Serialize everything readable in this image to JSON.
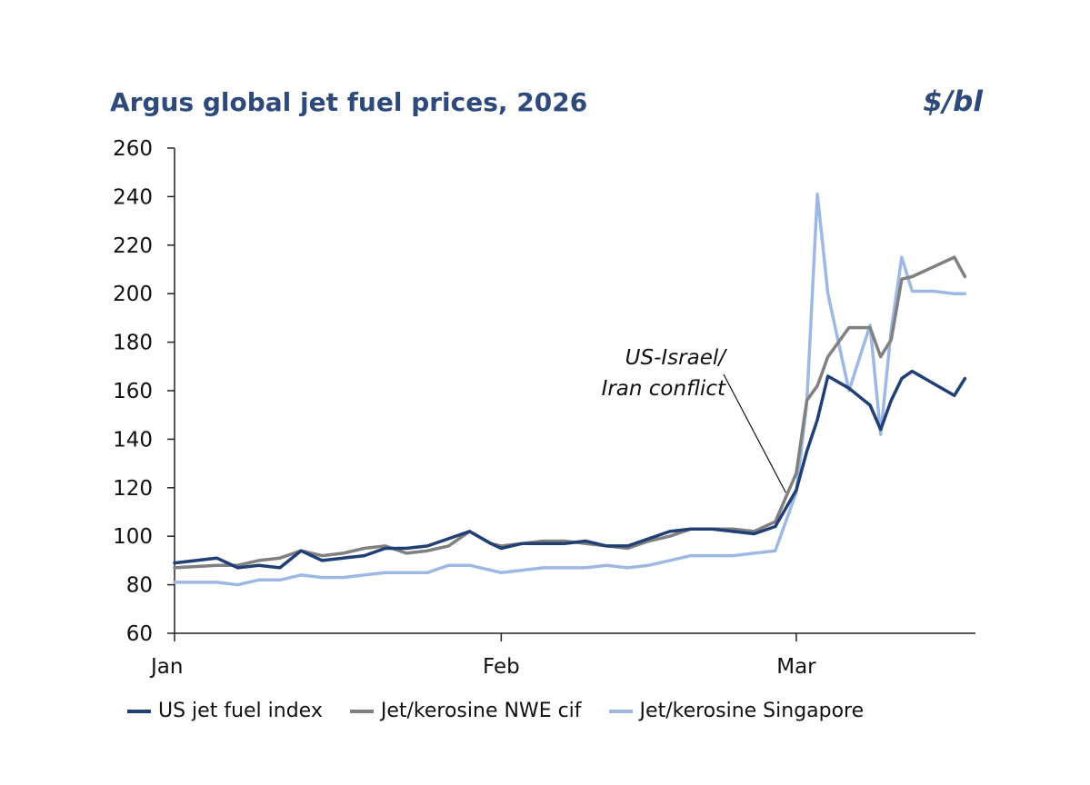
{
  "colors": {
    "title": "#2e4a7a",
    "axis": "#222222",
    "series_us": "#1f3f75",
    "series_nwe": "#808080",
    "series_sing": "#9db9e3"
  },
  "chart_data": {
    "type": "line",
    "title": "Argus global jet fuel prices, 2026",
    "unit_label": "$/bl",
    "xlabel": "",
    "ylabel": "$/bl",
    "ylim": [
      60,
      260
    ],
    "yticks": [
      60,
      80,
      100,
      120,
      140,
      160,
      180,
      200,
      220,
      240,
      260
    ],
    "xlim": [
      0,
      76
    ],
    "xticks": [
      {
        "label": "Jan",
        "x": 0
      },
      {
        "label": "Feb",
        "x": 31
      },
      {
        "label": "Mar",
        "x": 59
      }
    ],
    "annotation": {
      "lines": [
        "US-Israel/",
        "Iran conflict"
      ],
      "points_to_day": 58
    },
    "x": [
      0,
      4,
      6,
      8,
      10,
      12,
      14,
      16,
      18,
      20,
      22,
      24,
      26,
      28,
      30,
      31,
      33,
      35,
      37,
      39,
      41,
      43,
      45,
      47,
      49,
      51,
      53,
      55,
      57,
      59,
      60,
      61,
      62,
      64,
      66,
      67,
      68,
      69,
      70,
      72,
      74,
      75
    ],
    "series": [
      {
        "name": "US jet fuel index",
        "color": "#1f3f75",
        "values": [
          89,
          91,
          87,
          88,
          87,
          94,
          90,
          91,
          92,
          95,
          95,
          96,
          99,
          102,
          97,
          95,
          97,
          97,
          97,
          98,
          96,
          96,
          99,
          102,
          103,
          103,
          102,
          101,
          104,
          119,
          135,
          148,
          166,
          161,
          154,
          144,
          156,
          165,
          168,
          163,
          158,
          165
        ]
      },
      {
        "name": "Jet/kerosine NWE cif",
        "color": "#808080",
        "values": [
          87,
          88,
          88,
          90,
          91,
          94,
          92,
          93,
          95,
          96,
          93,
          94,
          96,
          102,
          97,
          96,
          97,
          98,
          98,
          97,
          96,
          95,
          98,
          100,
          103,
          103,
          103,
          102,
          106,
          126,
          156,
          162,
          174,
          186,
          186,
          174,
          181,
          206,
          207,
          211,
          215,
          207
        ]
      },
      {
        "name": "Jet/kerosine Singapore",
        "color": "#9db9e3",
        "values": [
          81,
          81,
          80,
          82,
          82,
          84,
          83,
          83,
          84,
          85,
          85,
          85,
          88,
          88,
          86,
          85,
          86,
          87,
          87,
          87,
          88,
          87,
          88,
          90,
          92,
          92,
          92,
          93,
          94,
          118,
          155,
          241,
          200,
          160,
          187,
          142,
          185,
          215,
          201,
          201,
          200,
          200
        ]
      }
    ]
  },
  "legend": {
    "items": [
      {
        "label": "US jet fuel index",
        "color": "#1f3f75"
      },
      {
        "label": "Jet/kerosine NWE cif",
        "color": "#808080"
      },
      {
        "label": "Jet/kerosine Singapore",
        "color": "#9db9e3"
      }
    ]
  }
}
